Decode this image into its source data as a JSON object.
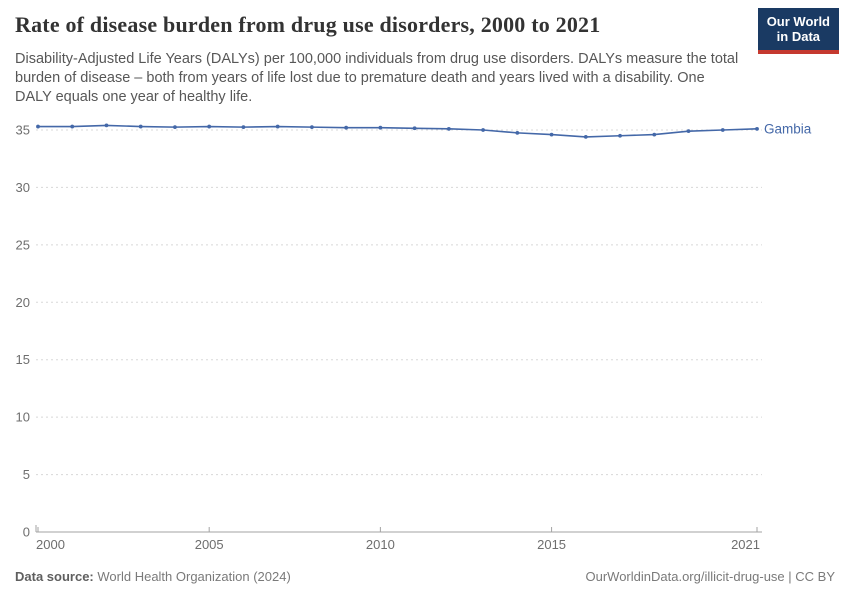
{
  "header": {
    "title": "Rate of disease burden from drug use disorders, 2000 to 2021",
    "subtitle": "Disability-Adjusted Life Years (DALYs) per 100,000 individuals from drug use disorders. DALYs measure the total burden of disease – both from years of life lost due to premature death and years lived with a disability. One DALY equals one year of healthy life.",
    "logo": {
      "line1": "Our World",
      "line2": "in Data"
    }
  },
  "chart_data": {
    "type": "line",
    "title": "Rate of disease burden from drug use disorders, 2000 to 2021",
    "ylabel": "DALYs per 100,000 individuals",
    "x": [
      2000,
      2001,
      2002,
      2003,
      2004,
      2005,
      2006,
      2007,
      2008,
      2009,
      2010,
      2011,
      2012,
      2013,
      2014,
      2015,
      2016,
      2017,
      2018,
      2019,
      2020,
      2021
    ],
    "series": [
      {
        "name": "Gambia",
        "color": "#4468a8",
        "values": [
          35.3,
          35.3,
          35.4,
          35.3,
          35.25,
          35.3,
          35.25,
          35.3,
          35.25,
          35.2,
          35.2,
          35.15,
          35.1,
          35.0,
          34.75,
          34.6,
          34.4,
          34.5,
          34.6,
          34.9,
          35.0,
          35.1
        ]
      }
    ],
    "ylim": [
      0,
      35
    ],
    "yticks": [
      0,
      5,
      10,
      15,
      20,
      25,
      30,
      35
    ],
    "xticks": [
      2000,
      2005,
      2010,
      2015,
      2021
    ],
    "grid": "dashed-horizontal",
    "legend_position": "end-of-line-label",
    "end_label": "Gambia"
  },
  "colors": {
    "series_blue": "#4468a8",
    "logo_bg": "#1a3a63",
    "logo_stripe": "#c5392f",
    "grid": "#d8d8d8",
    "axis": "#a3a3a3",
    "tick_text": "#6e6e6e"
  },
  "footer": {
    "datasource_label": "Data source:",
    "datasource_value": "World Health Organization (2024)",
    "credit": "OurWorldinData.org/illicit-drug-use | CC BY"
  }
}
